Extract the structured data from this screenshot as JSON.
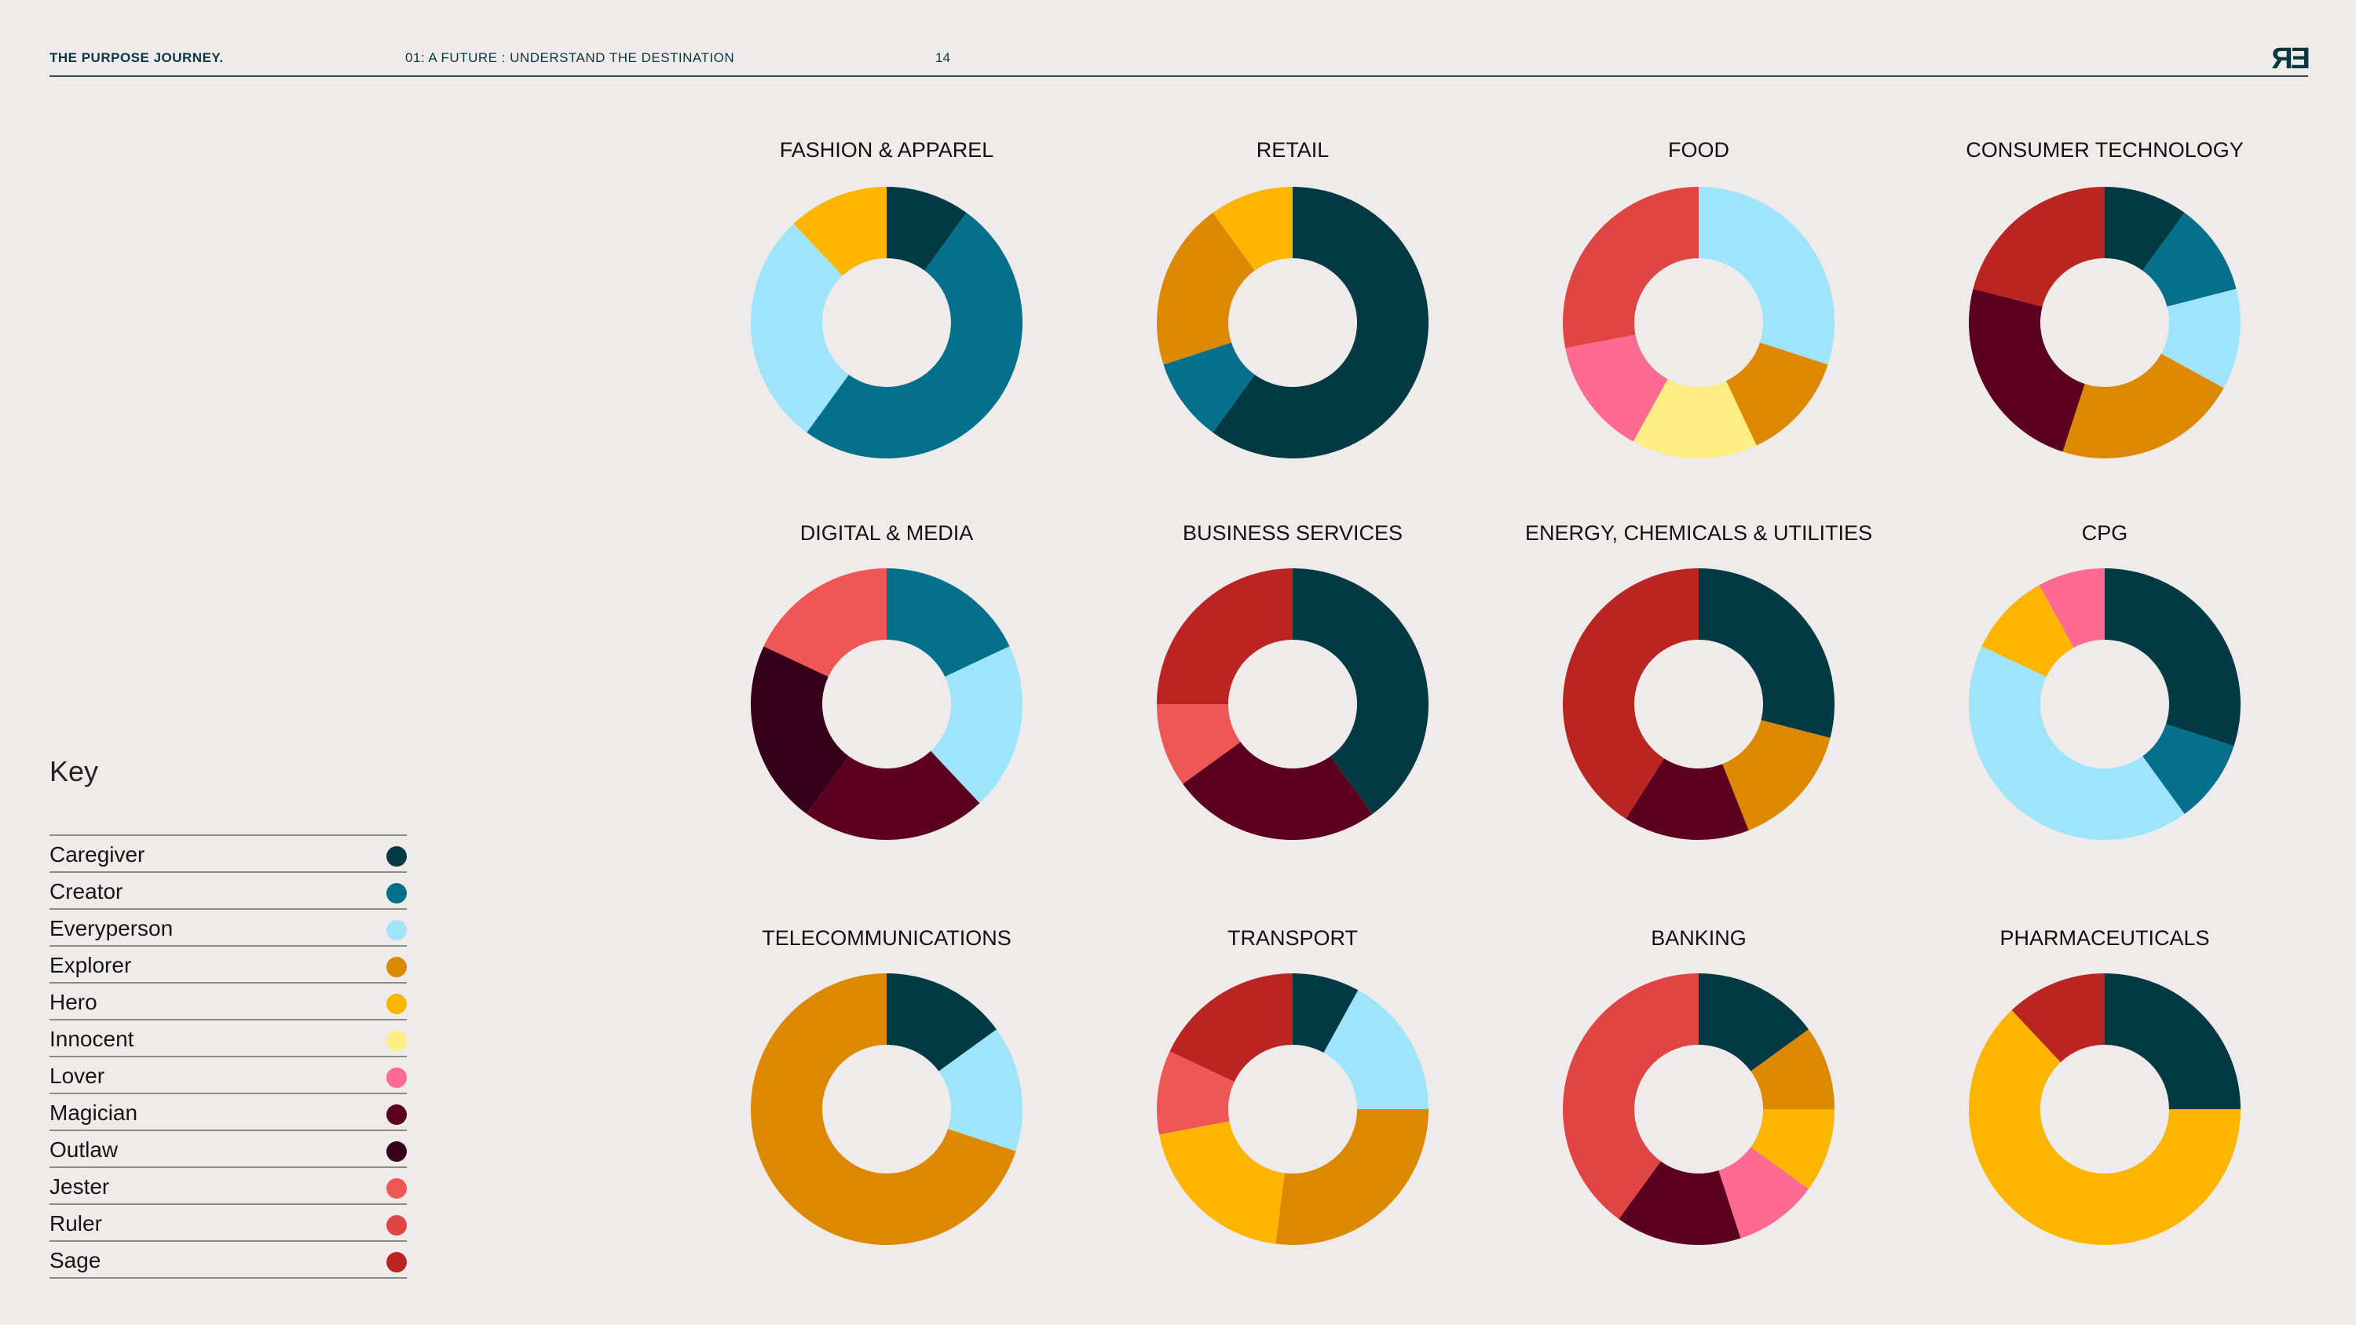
{
  "header": {
    "brand": "THE PURPOSE JOURNEY.",
    "section": "01: A FUTURE : UNDERSTAND THE DESTINATION",
    "page": "14",
    "logo": "ЯƎ"
  },
  "key": {
    "title": "Key",
    "items": [
      {
        "label": "Caregiver",
        "color": "#023a44"
      },
      {
        "label": "Creator",
        "color": "#04708c"
      },
      {
        "label": "Everyperson",
        "color": "#9ee5fb"
      },
      {
        "label": "Explorer",
        "color": "#dd8900"
      },
      {
        "label": "Hero",
        "color": "#feb500"
      },
      {
        "label": "Innocent",
        "color": "#ffee83"
      },
      {
        "label": "Lover",
        "color": "#fe6a92"
      },
      {
        "label": "Magician",
        "color": "#5c0020"
      },
      {
        "label": "Outlaw",
        "color": "#36001a"
      },
      {
        "label": "Jester",
        "color": "#ee5756"
      },
      {
        "label": "Ruler",
        "color": "#e04443"
      },
      {
        "label": "Sage",
        "color": "#ba2522"
      }
    ]
  },
  "chart_data": [
    {
      "type": "pie",
      "title": "FASHION & APPAREL",
      "slices": [
        {
          "label": "Caregiver",
          "value": 10
        },
        {
          "label": "Creator",
          "value": 50
        },
        {
          "label": "Everyperson",
          "value": 28
        },
        {
          "label": "Hero",
          "value": 12
        }
      ]
    },
    {
      "type": "pie",
      "title": "RETAIL",
      "slices": [
        {
          "label": "Caregiver",
          "value": 60
        },
        {
          "label": "Creator",
          "value": 10
        },
        {
          "label": "Explorer",
          "value": 20
        },
        {
          "label": "Hero",
          "value": 10
        }
      ]
    },
    {
      "type": "pie",
      "title": "FOOD",
      "slices": [
        {
          "label": "Everyperson",
          "value": 30
        },
        {
          "label": "Explorer",
          "value": 13
        },
        {
          "label": "Innocent",
          "value": 15
        },
        {
          "label": "Lover",
          "value": 14
        },
        {
          "label": "Ruler",
          "value": 28
        }
      ]
    },
    {
      "type": "pie",
      "title": "CONSUMER TECHNOLOGY",
      "slices": [
        {
          "label": "Caregiver",
          "value": 10
        },
        {
          "label": "Creator",
          "value": 11
        },
        {
          "label": "Everyperson",
          "value": 12
        },
        {
          "label": "Explorer",
          "value": 22
        },
        {
          "label": "Magician",
          "value": 24
        },
        {
          "label": "Sage",
          "value": 21
        }
      ]
    },
    {
      "type": "pie",
      "title": "DIGITAL & MEDIA",
      "slices": [
        {
          "label": "Creator",
          "value": 18
        },
        {
          "label": "Everyperson",
          "value": 20
        },
        {
          "label": "Magician",
          "value": 22
        },
        {
          "label": "Outlaw",
          "value": 22
        },
        {
          "label": "Jester",
          "value": 18
        }
      ]
    },
    {
      "type": "pie",
      "title": "BUSINESS SERVICES",
      "slices": [
        {
          "label": "Caregiver",
          "value": 40
        },
        {
          "label": "Magician",
          "value": 25
        },
        {
          "label": "Jester",
          "value": 10
        },
        {
          "label": "Sage",
          "value": 25
        }
      ]
    },
    {
      "type": "pie",
      "title": "ENERGY, CHEMICALS & UTILITIES",
      "slices": [
        {
          "label": "Caregiver",
          "value": 29
        },
        {
          "label": "Explorer",
          "value": 15
        },
        {
          "label": "Magician",
          "value": 15
        },
        {
          "label": "Sage",
          "value": 41
        }
      ]
    },
    {
      "type": "pie",
      "title": "CPG",
      "slices": [
        {
          "label": "Caregiver",
          "value": 30
        },
        {
          "label": "Creator",
          "value": 10
        },
        {
          "label": "Everyperson",
          "value": 42
        },
        {
          "label": "Hero",
          "value": 10
        },
        {
          "label": "Lover",
          "value": 8
        }
      ]
    },
    {
      "type": "pie",
      "title": "TELECOMMUNICATIONS",
      "slices": [
        {
          "label": "Caregiver",
          "value": 15
        },
        {
          "label": "Everyperson",
          "value": 15
        },
        {
          "label": "Explorer",
          "value": 70
        }
      ]
    },
    {
      "type": "pie",
      "title": "TRANSPORT",
      "slices": [
        {
          "label": "Caregiver",
          "value": 8
        },
        {
          "label": "Everyperson",
          "value": 17
        },
        {
          "label": "Explorer",
          "value": 27
        },
        {
          "label": "Hero",
          "value": 20
        },
        {
          "label": "Jester",
          "value": 10
        },
        {
          "label": "Sage",
          "value": 18
        }
      ]
    },
    {
      "type": "pie",
      "title": "BANKING",
      "slices": [
        {
          "label": "Caregiver",
          "value": 15
        },
        {
          "label": "Explorer",
          "value": 10
        },
        {
          "label": "Hero",
          "value": 10
        },
        {
          "label": "Lover",
          "value": 10
        },
        {
          "label": "Magician",
          "value": 15
        },
        {
          "label": "Ruler",
          "value": 40
        }
      ]
    },
    {
      "type": "pie",
      "title": "PHARMACEUTICALS",
      "slices": [
        {
          "label": "Caregiver",
          "value": 25
        },
        {
          "label": "Hero",
          "value": 63
        },
        {
          "label": "Sage",
          "value": 12
        }
      ]
    }
  ]
}
